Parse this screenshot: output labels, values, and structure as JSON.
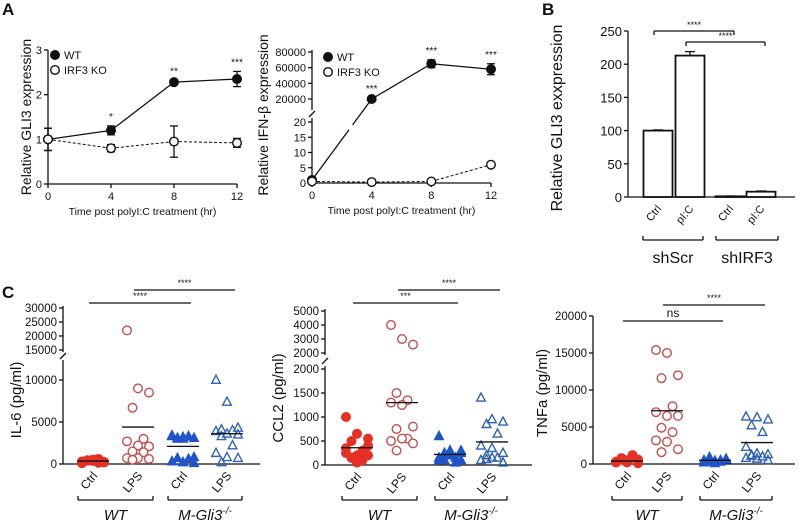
{
  "panel_labels": {
    "a": "A",
    "b": "B",
    "c": "C"
  },
  "colors": {
    "wt_ctrl": "#e63027",
    "wt_lps": "#c0504d",
    "ko_ctrl": "#1f55c8",
    "ko_lps": "#2f62b0",
    "ink": "#111111"
  },
  "chart_data": [
    {
      "id": "A1",
      "type": "line",
      "ylabel": "Relative GLI3 expression",
      "xlabel": "Time post polyI:C treatment (hr)",
      "x": [
        0,
        4,
        8,
        12
      ],
      "xticks": [
        "0",
        "4",
        "8",
        "12"
      ],
      "ylim": [
        0,
        3
      ],
      "yticks": [
        "0",
        "1",
        "2",
        "3"
      ],
      "legend": "top-left",
      "series": [
        {
          "name": "WT",
          "marker": "filled-circle",
          "line": "solid",
          "values": [
            1,
            1.2,
            2.28,
            2.35
          ],
          "errors": [
            0.25,
            0.1,
            0.04,
            0.17
          ]
        },
        {
          "name": "IRF3 KO",
          "marker": "open-circle",
          "line": "dashed",
          "values": [
            1,
            0.8,
            0.95,
            0.92
          ],
          "errors": [
            0.25,
            0.08,
            0.35,
            0.1
          ]
        }
      ],
      "annotations": [
        "",
        "*",
        "**",
        "***"
      ]
    },
    {
      "id": "A2",
      "type": "line",
      "ylabel": "Relative IFN-β expression",
      "xlabel": "Time post polyI:C treatment (hr)",
      "x": [
        0,
        4,
        8,
        12
      ],
      "xticks": [
        "0",
        "4",
        "8",
        "12"
      ],
      "axis_break": true,
      "yticks_lower": [
        "0",
        "5",
        "10",
        "15",
        "20"
      ],
      "yticks_upper": [
        "20000",
        "40000",
        "60000",
        "80000"
      ],
      "legend": "top-left",
      "series": [
        {
          "name": "WT",
          "marker": "filled-circle",
          "line": "solid",
          "values": [
            1,
            20000,
            65000,
            58000
          ],
          "errors": [
            0.3,
            1500,
            5000,
            7000
          ]
        },
        {
          "name": "IRF3 KO",
          "marker": "open-circle",
          "line": "dashed",
          "values": [
            0.5,
            0.3,
            0.5,
            6
          ],
          "errors": [
            0,
            0,
            0,
            0
          ]
        }
      ],
      "annotations": [
        "",
        "***",
        "***",
        "***"
      ]
    },
    {
      "id": "B",
      "type": "bar",
      "ylabel": "Relative GLI3 exxpression",
      "categories": [
        "Ctrl",
        "pI:C",
        "Ctrl",
        "pI:C"
      ],
      "groups": [
        "shScr",
        "shIRF3"
      ],
      "values": [
        100,
        213,
        1,
        8
      ],
      "errors": [
        1,
        6,
        0.5,
        1
      ],
      "ylim": [
        0,
        250
      ],
      "yticks": [
        "0",
        "50",
        "100",
        "150",
        "200",
        "250"
      ],
      "comparisons": [
        {
          "from": 0,
          "to": 2,
          "label": "****"
        },
        {
          "from": 1,
          "to": 3,
          "label": "****"
        }
      ]
    },
    {
      "id": "C1",
      "type": "scatter",
      "ylabel": "IL-6 (pg/ml)",
      "categories": [
        "Ctrl",
        "LPS",
        "Ctrl",
        "LPS"
      ],
      "groups": [
        {
          "name": "WT",
          "sup": ""
        },
        {
          "name": "M-Gli3",
          "sup": "-/-"
        }
      ],
      "axis_break": true,
      "yticks_lower": [
        "0",
        "5000",
        "10000"
      ],
      "yticks_upper": [
        "15000",
        "20000",
        "25000",
        "30000"
      ],
      "points": [
        [
          300,
          500,
          200,
          400,
          600,
          100,
          350,
          250,
          450,
          150,
          300,
          500,
          200,
          400
        ],
        [
          22000,
          9000,
          8500,
          6700,
          3000,
          2700,
          2200,
          2100,
          1500,
          1400,
          700,
          700,
          600,
          500
        ],
        [
          3300,
          3200,
          3100,
          3000,
          3300,
          3400,
          3000,
          800,
          700,
          600,
          300,
          200,
          100,
          3100
        ],
        [
          10000,
          7400,
          4300,
          4100,
          4000,
          3900,
          3600,
          3500,
          3300,
          2200,
          1300,
          800,
          700,
          200
        ]
      ],
      "means": [
        350,
        4400,
        2100,
        3600
      ],
      "comparisons": [
        {
          "from": 0,
          "to": 2,
          "label": "****"
        },
        {
          "from": 1,
          "to": 3,
          "label": "****"
        }
      ]
    },
    {
      "id": "C2",
      "type": "scatter",
      "ylabel": "CCL2 (pg/ml)",
      "categories": [
        "Ctrl",
        "LPS",
        "Ctrl",
        "LPS"
      ],
      "groups": [
        {
          "name": "WT",
          "sup": ""
        },
        {
          "name": "M-Gli3",
          "sup": "-/-"
        }
      ],
      "axis_break": true,
      "yticks_lower": [
        "0",
        "500",
        "1000",
        "1500",
        "2000"
      ],
      "yticks_upper": [
        "2000",
        "3000",
        "4000",
        "5000"
      ],
      "points": [
        [
          1000,
          650,
          550,
          500,
          300,
          250,
          200,
          200,
          150,
          100,
          350,
          50,
          400,
          150
        ],
        [
          4000,
          3000,
          2600,
          1500,
          1350,
          1300,
          1250,
          800,
          750,
          550,
          500,
          550,
          450,
          300
        ],
        [
          600,
          300,
          250,
          200,
          150,
          100,
          200,
          300,
          100,
          50,
          150,
          200,
          100,
          250
        ],
        [
          1400,
          950,
          900,
          850,
          650,
          400,
          350,
          250,
          200,
          150,
          100,
          150,
          50,
          120
        ]
      ],
      "means": [
        360,
        1300,
        220,
        480
      ],
      "comparisons": [
        {
          "from": 0,
          "to": 2,
          "label": "***"
        },
        {
          "from": 1,
          "to": 3,
          "label": "****"
        }
      ]
    },
    {
      "id": "C3",
      "type": "scatter",
      "ylabel": "TNFa (pg/ml)",
      "categories": [
        "Ctrl",
        "LPS",
        "Ctrl",
        "LPS"
      ],
      "groups": [
        {
          "name": "WT",
          "sup": ""
        },
        {
          "name": "M-Gli3",
          "sup": "-/-"
        }
      ],
      "ylim": [
        0,
        20000
      ],
      "yticks": [
        "0",
        "5000",
        "10000",
        "15000",
        "20000"
      ],
      "points": [
        [
          200,
          400,
          600,
          800,
          1200,
          300,
          500,
          100,
          700,
          900,
          300,
          200,
          400,
          600
        ],
        [
          15400,
          15000,
          12000,
          11600,
          7800,
          7000,
          6500,
          6500,
          4900,
          4300,
          3200,
          3000,
          2000,
          1600
        ],
        [
          200,
          400,
          600,
          900,
          300,
          500,
          100,
          700,
          300,
          500,
          200,
          400,
          600,
          800
        ],
        [
          6400,
          6300,
          6000,
          5200,
          4300,
          2300,
          1400,
          1300,
          1200,
          1000,
          800,
          700,
          500,
          1100
        ]
      ],
      "means": [
        400,
        7200,
        500,
        2900
      ],
      "comparisons": [
        {
          "from": 0,
          "to": 2,
          "label": "ns"
        },
        {
          "from": 1,
          "to": 3,
          "label": "****"
        }
      ]
    }
  ]
}
